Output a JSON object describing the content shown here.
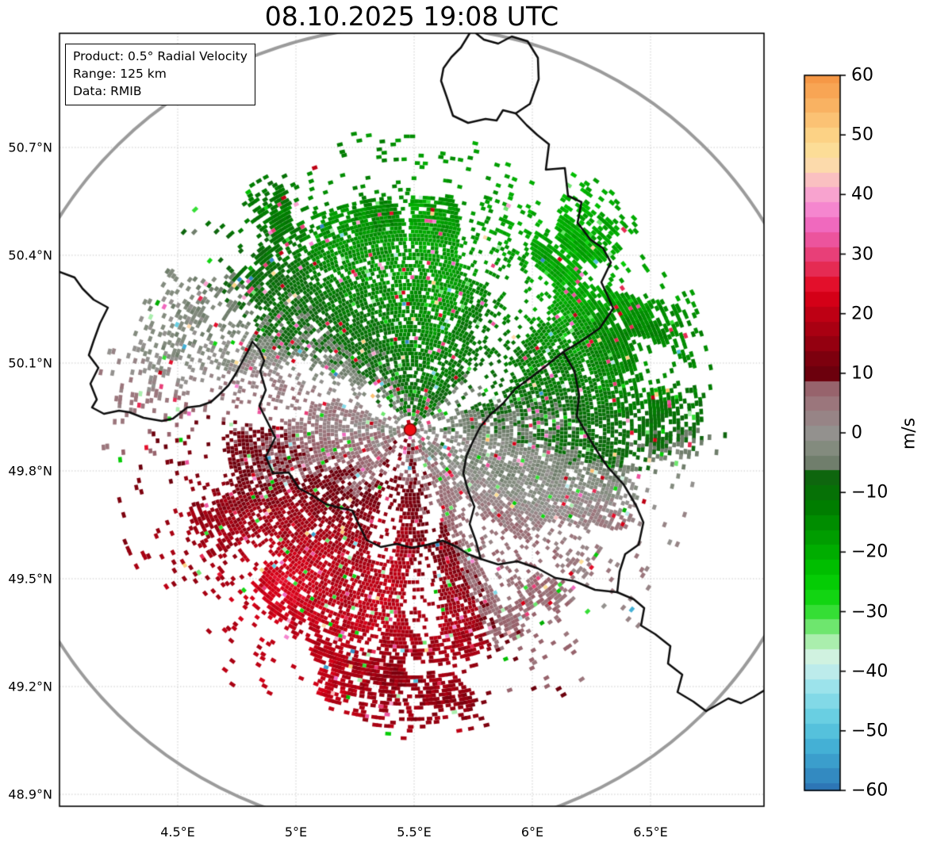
{
  "title": "08.10.2025 19:08 UTC",
  "info_box": {
    "lines": [
      "Product: 0.5° Radial Velocity",
      "Range: 125 km",
      "Data: RMIB"
    ]
  },
  "x_axis": {
    "ticks": [
      {
        "label": "4.5°E",
        "lon": 4.5
      },
      {
        "label": "5°E",
        "lon": 5.0
      },
      {
        "label": "5.5°E",
        "lon": 5.5
      },
      {
        "label": "6°E",
        "lon": 6.0
      },
      {
        "label": "6.5°E",
        "lon": 6.5
      }
    ]
  },
  "y_axis": {
    "ticks": [
      {
        "label": "50.7°N",
        "lat": 50.7
      },
      {
        "label": "50.4°N",
        "lat": 50.4
      },
      {
        "label": "50.1°N",
        "lat": 50.1
      },
      {
        "label": "49.8°N",
        "lat": 49.8
      },
      {
        "label": "49.5°N",
        "lat": 49.5
      },
      {
        "label": "49.2°N",
        "lat": 49.2
      },
      {
        "label": "48.9°N",
        "lat": 48.9
      }
    ]
  },
  "colorbar": {
    "label": "m/s",
    "vmin": -60,
    "vmax": 60,
    "ticks": [
      {
        "value": 60,
        "label": "60"
      },
      {
        "value": 50,
        "label": "50"
      },
      {
        "value": 40,
        "label": "40"
      },
      {
        "value": 30,
        "label": "30"
      },
      {
        "value": 20,
        "label": "20"
      },
      {
        "value": 10,
        "label": "10"
      },
      {
        "value": 0,
        "label": "0"
      },
      {
        "value": -10,
        "label": "−10"
      },
      {
        "value": -20,
        "label": "−20"
      },
      {
        "value": -30,
        "label": "−30"
      },
      {
        "value": -40,
        "label": "−40"
      },
      {
        "value": -50,
        "label": "−50"
      },
      {
        "value": -60,
        "label": "−60"
      }
    ]
  },
  "colors": {
    "background": "#ffffff",
    "frame": "#000000",
    "gridline": "#c6c6c6",
    "country_border": "#0d0d0d",
    "range_circle": "#9b9b9b",
    "radar_dot_fill": "#ee0e14",
    "radar_dot_edge": "#7e0505"
  },
  "chart_data": {
    "type": "heatmap",
    "subtype": "radar_ppi_radial_velocity",
    "title": "08.10.2025 19:08 UTC",
    "product": "0.5° Radial Velocity",
    "range_km": 125,
    "data_source": "RMIB",
    "units": "m/s",
    "colorbar_range": [
      -60,
      60
    ],
    "colorbar_tick_step": 10,
    "x_ticks_lon_deg_e": [
      4.5,
      5.0,
      5.5,
      6.0,
      6.5
    ],
    "y_ticks_lat_deg_n": [
      50.7,
      50.4,
      50.1,
      49.8,
      49.5,
      49.2,
      48.9
    ],
    "map_extent": {
      "lon_min": 4.0,
      "lon_max": 6.98,
      "lat_min": 48.87,
      "lat_max": 51.02
    },
    "radar_site": {
      "lon_deg_e": 5.5,
      "lat_deg_n": 49.91,
      "marker": "red dot"
    },
    "range_ring_km": 125,
    "grid": true,
    "legend_position": "right colorbar",
    "velocity_field_summary": {
      "description": "Velocity couplet around radar: negative radial velocities (green, toward radar) across the north/northeast half; positive velocities (dark red, away from radar) to the south/southwest; near-zero gray/mauve band oriented WNW-ESE; large pale-mauve region southeast; scattered noise speckles (pink, bright red, bright green, rare cyan/blue) and white data gaps; echo coverage out to ~90 km of the 125 km range",
      "sectors": [
        {
          "sector": "north-northeast",
          "radial_velocity_ms": [
            -5,
            -22
          ],
          "dominant_color": "green"
        },
        {
          "sector": "south-southwest",
          "radial_velocity_ms": [
            8,
            26
          ],
          "dominant_color": "dark red / red"
        },
        {
          "sector": "west",
          "radial_velocity_ms": [
            0,
            6
          ],
          "dominant_color": "mauve-gray"
        },
        {
          "sector": "east-southeast",
          "radial_velocity_ms": [
            -4,
            6
          ],
          "dominant_color": "gray / pale mauve"
        }
      ]
    }
  }
}
